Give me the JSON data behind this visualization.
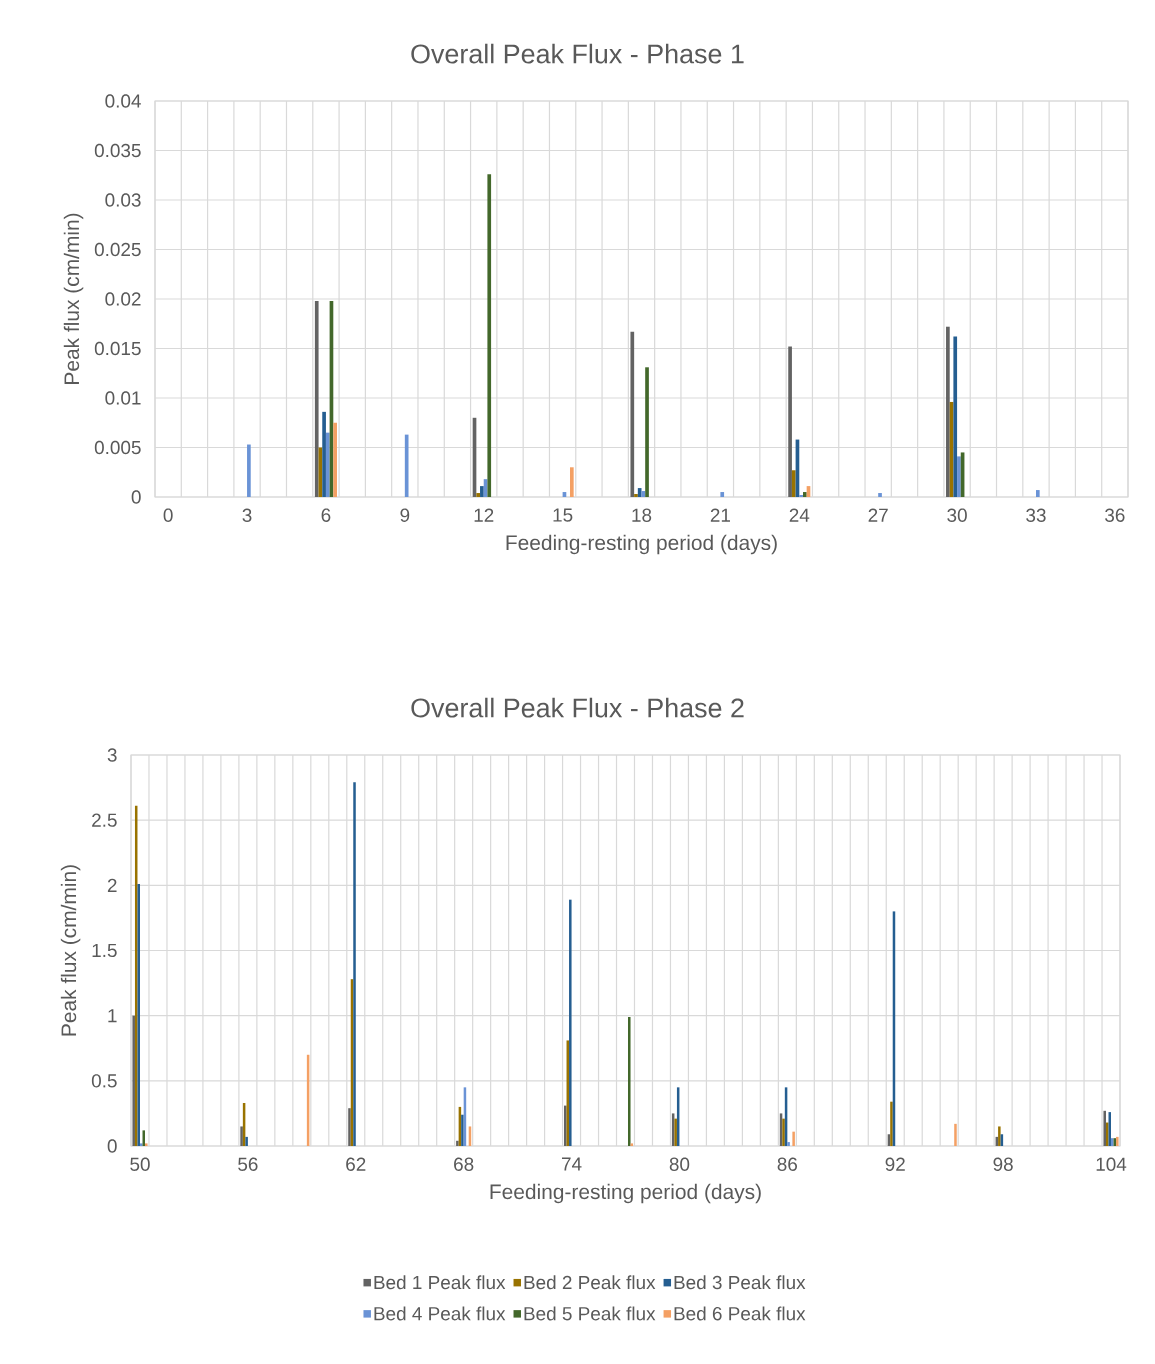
{
  "chart_data": [
    {
      "type": "bar",
      "title": "Overall Peak Flux - Phase 1",
      "xlabel": "Feeding-resting period (days)",
      "ylabel": "Peak flux (cm/min)",
      "categories": [
        "0",
        null,
        null,
        "3",
        null,
        null,
        "6",
        null,
        null,
        "9",
        null,
        null,
        "12",
        null,
        null,
        "15",
        null,
        null,
        "18",
        null,
        null,
        "21",
        null,
        null,
        "24",
        null,
        null,
        "27",
        null,
        null,
        "30",
        null,
        null,
        "33",
        null,
        null,
        "36"
      ],
      "ylim": [
        0,
        0.04
      ],
      "yticks": [
        0,
        0.005,
        0.01,
        0.015,
        0.02,
        0.025,
        0.03,
        0.035,
        0.04
      ],
      "grid": true,
      "series": [
        {
          "color": "#636363",
          "values": [
            null,
            null,
            null,
            null,
            null,
            null,
            0.0198,
            null,
            null,
            null,
            null,
            null,
            0.008,
            null,
            null,
            null,
            null,
            null,
            0.0167,
            null,
            null,
            null,
            null,
            null,
            0.0152,
            null,
            null,
            null,
            null,
            null,
            0.0172,
            null,
            null,
            null,
            null,
            null,
            null
          ]
        },
        {
          "color": "#997300",
          "values": [
            null,
            null,
            null,
            null,
            null,
            null,
            0.005,
            null,
            null,
            null,
            null,
            null,
            0.0004,
            null,
            null,
            null,
            null,
            null,
            0.0003,
            null,
            null,
            null,
            null,
            null,
            0.0027,
            null,
            null,
            null,
            null,
            null,
            0.0096,
            null,
            null,
            null,
            null,
            null,
            null
          ]
        },
        {
          "color": "#255e91",
          "values": [
            null,
            null,
            null,
            null,
            null,
            null,
            0.0086,
            null,
            null,
            null,
            null,
            null,
            0.0011,
            null,
            null,
            null,
            null,
            null,
            0.0009,
            null,
            null,
            null,
            null,
            null,
            0.0058,
            null,
            null,
            null,
            null,
            null,
            0.0162,
            null,
            null,
            null,
            null,
            null,
            null
          ]
        },
        {
          "color": "#6a93d6",
          "values": [
            null,
            null,
            null,
            0.0053,
            null,
            null,
            0.0065,
            null,
            null,
            0.0063,
            null,
            null,
            0.0018,
            null,
            null,
            0.0005,
            null,
            null,
            0.0006,
            null,
            null,
            0.0005,
            null,
            null,
            0.0002,
            null,
            null,
            0.0004,
            null,
            null,
            0.0041,
            null,
            null,
            0.0007,
            null,
            null,
            null
          ]
        },
        {
          "color": "#43682b",
          "values": [
            null,
            null,
            null,
            null,
            null,
            null,
            0.0198,
            null,
            null,
            null,
            null,
            null,
            0.0326,
            null,
            null,
            null,
            null,
            null,
            0.0131,
            null,
            null,
            null,
            null,
            null,
            0.0005,
            null,
            null,
            null,
            null,
            null,
            0.0045,
            null,
            null,
            null,
            null,
            null,
            null
          ]
        },
        {
          "color": "#f4a064",
          "values": [
            null,
            null,
            null,
            null,
            null,
            null,
            0.0075,
            null,
            null,
            null,
            null,
            null,
            null,
            null,
            null,
            0.003,
            null,
            null,
            null,
            null,
            null,
            null,
            null,
            null,
            0.0011,
            null,
            null,
            null,
            null,
            null,
            null,
            null,
            null,
            null,
            null,
            null,
            null
          ]
        }
      ]
    },
    {
      "type": "bar",
      "title": "Overall Peak Flux - Phase 2",
      "xlabel": "Feeding-resting period (days)",
      "ylabel": "Peak flux (cm/min)",
      "categories": [
        "50",
        null,
        null,
        null,
        null,
        null,
        "56",
        null,
        null,
        null,
        null,
        null,
        "62",
        null,
        null,
        null,
        null,
        null,
        "68",
        null,
        null,
        null,
        null,
        null,
        "74",
        null,
        null,
        null,
        null,
        null,
        "80",
        null,
        null,
        null,
        null,
        null,
        "86",
        null,
        null,
        null,
        null,
        null,
        "92",
        null,
        null,
        null,
        null,
        null,
        "98",
        null,
        null,
        null,
        null,
        null,
        "104"
      ],
      "ylim": [
        0,
        3
      ],
      "yticks": [
        0,
        0.5,
        1,
        1.5,
        2,
        2.5,
        3
      ],
      "grid": true,
      "legend": "bottom",
      "series": [
        {
          "name": "Bed 1 Peak flux",
          "color": "#636363",
          "values": [
            1.0,
            null,
            null,
            null,
            null,
            null,
            0.15,
            null,
            null,
            null,
            null,
            null,
            0.29,
            null,
            null,
            null,
            null,
            null,
            0.04,
            null,
            null,
            null,
            null,
            null,
            0.31,
            null,
            null,
            null,
            null,
            null,
            0.25,
            null,
            null,
            null,
            null,
            null,
            0.25,
            null,
            null,
            null,
            null,
            null,
            0.09,
            null,
            null,
            null,
            null,
            null,
            0.07,
            null,
            null,
            null,
            null,
            null,
            0.27
          ]
        },
        {
          "name": "Bed 2 Peak flux",
          "color": "#997300",
          "values": [
            2.61,
            null,
            null,
            null,
            null,
            null,
            0.33,
            null,
            null,
            null,
            null,
            null,
            1.28,
            null,
            null,
            null,
            null,
            null,
            0.3,
            null,
            null,
            null,
            null,
            null,
            0.81,
            null,
            null,
            null,
            null,
            null,
            0.21,
            null,
            null,
            null,
            null,
            null,
            0.21,
            null,
            null,
            null,
            null,
            null,
            0.34,
            null,
            null,
            null,
            null,
            null,
            0.15,
            null,
            null,
            null,
            null,
            null,
            0.18
          ]
        },
        {
          "name": "Bed 3 Peak flux",
          "color": "#255e91",
          "values": [
            2.01,
            null,
            null,
            null,
            null,
            null,
            0.07,
            null,
            null,
            null,
            null,
            null,
            2.79,
            null,
            null,
            null,
            null,
            null,
            0.24,
            null,
            null,
            null,
            null,
            null,
            1.89,
            null,
            null,
            null,
            null,
            null,
            0.45,
            null,
            null,
            null,
            null,
            null,
            0.45,
            null,
            null,
            null,
            null,
            null,
            1.8,
            null,
            null,
            null,
            null,
            null,
            0.09,
            null,
            null,
            null,
            null,
            null,
            0.26
          ]
        },
        {
          "name": "Bed 4 Peak flux",
          "color": "#6a93d6",
          "values": [
            0.02,
            null,
            null,
            null,
            null,
            null,
            null,
            null,
            null,
            null,
            null,
            null,
            null,
            null,
            null,
            null,
            null,
            null,
            0.45,
            null,
            null,
            null,
            null,
            null,
            null,
            null,
            null,
            null,
            null,
            null,
            null,
            null,
            null,
            null,
            null,
            null,
            0.03,
            null,
            null,
            null,
            null,
            null,
            null,
            null,
            null,
            null,
            null,
            null,
            null,
            null,
            null,
            null,
            null,
            null,
            0.06
          ]
        },
        {
          "name": "Bed 5 Peak flux",
          "color": "#43682b",
          "values": [
            0.12,
            null,
            null,
            null,
            null,
            null,
            null,
            null,
            null,
            null,
            null,
            null,
            null,
            null,
            null,
            null,
            null,
            null,
            null,
            null,
            null,
            null,
            null,
            null,
            null,
            null,
            null,
            0.99,
            null,
            null,
            null,
            null,
            null,
            null,
            null,
            null,
            null,
            null,
            null,
            null,
            null,
            null,
            null,
            null,
            null,
            null,
            null,
            null,
            null,
            null,
            null,
            null,
            null,
            null,
            0.06
          ]
        },
        {
          "name": "Bed 6 Peak flux",
          "color": "#f4a064",
          "values": [
            0.02,
            null,
            null,
            null,
            null,
            null,
            null,
            null,
            null,
            0.7,
            null,
            null,
            null,
            null,
            null,
            null,
            null,
            null,
            0.15,
            null,
            null,
            null,
            null,
            null,
            null,
            null,
            null,
            0.02,
            null,
            null,
            null,
            null,
            null,
            null,
            null,
            null,
            0.11,
            null,
            null,
            null,
            null,
            null,
            null,
            null,
            null,
            0.17,
            null,
            null,
            null,
            null,
            null,
            null,
            null,
            null,
            0.07
          ]
        }
      ]
    }
  ]
}
